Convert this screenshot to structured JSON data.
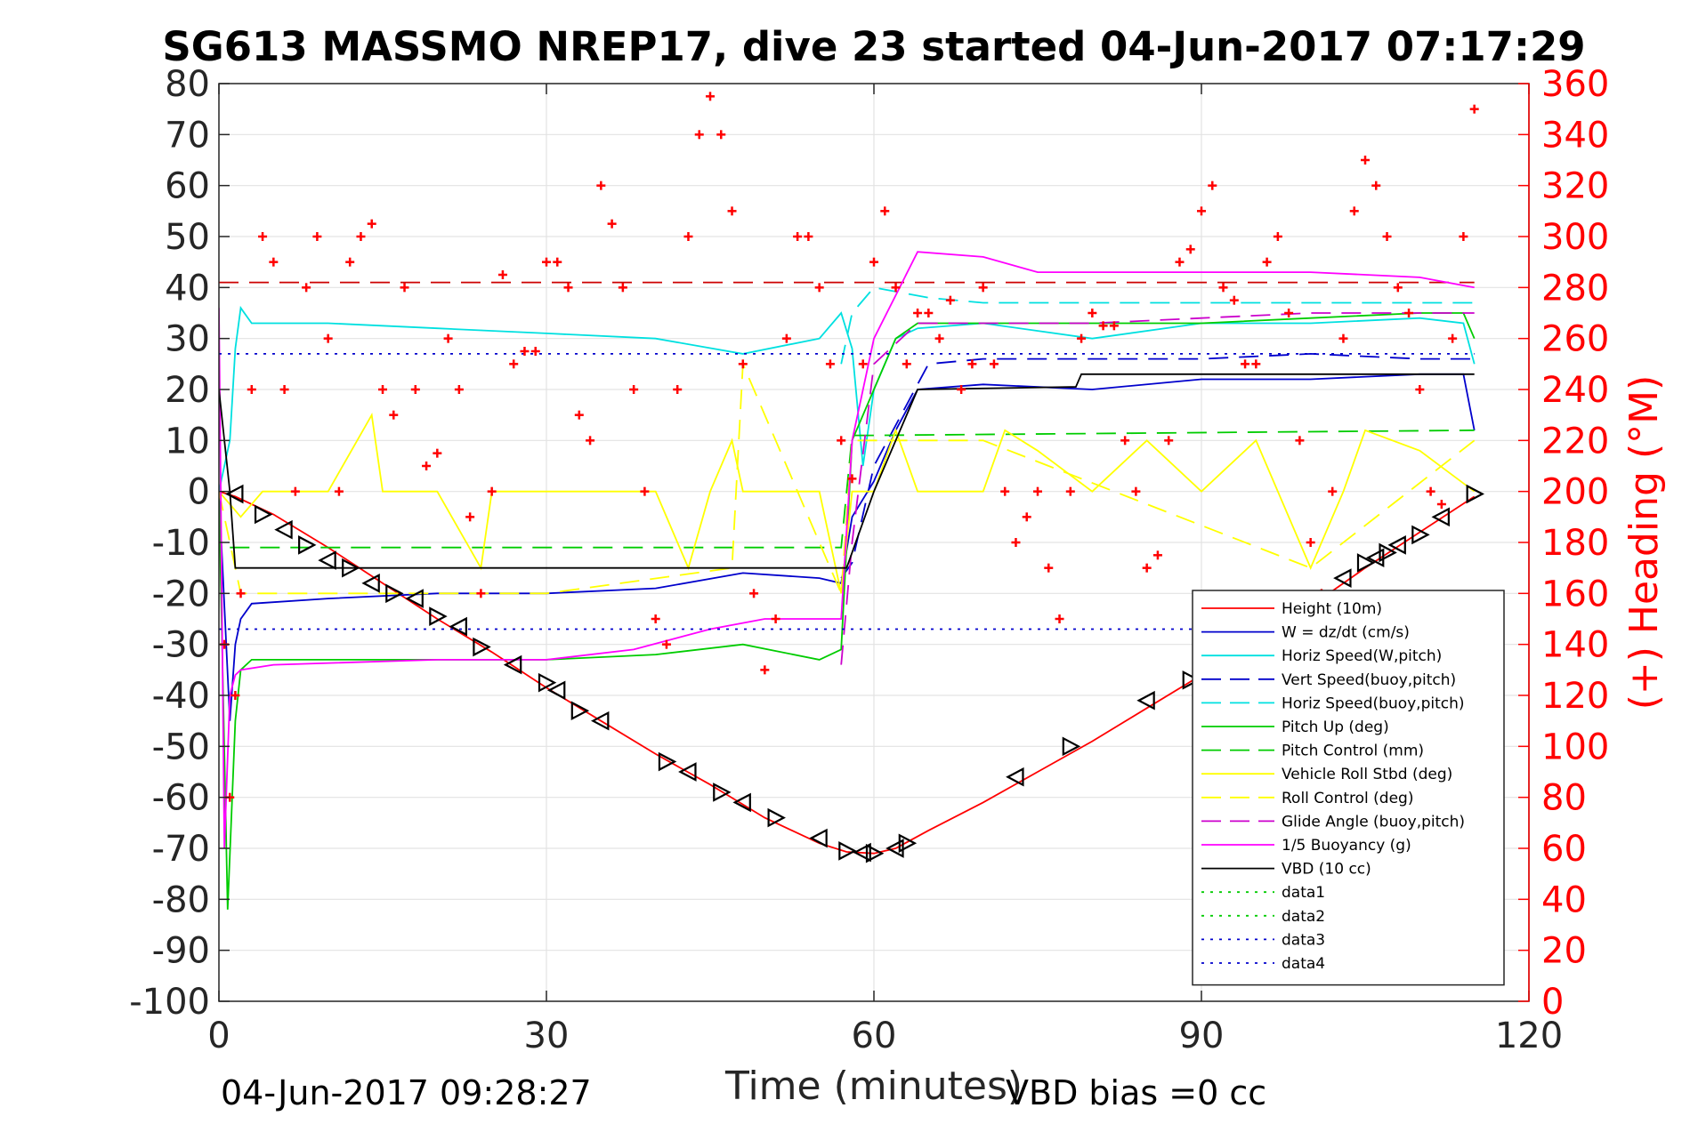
{
  "chart_data": {
    "type": "line",
    "title": "SG613 MASSMO NREP17, dive 23 started 04-Jun-2017 07:17:29",
    "xlabel": "Time (minutes)",
    "ylabel": "",
    "ylabel_right": "(+) Heading (°M)",
    "xlim": [
      0,
      120
    ],
    "ylim": [
      -100,
      80
    ],
    "ylim_right": [
      0,
      360
    ],
    "x_ticks": [
      0,
      30,
      60,
      90,
      120
    ],
    "y_ticks": [
      80,
      70,
      60,
      50,
      40,
      30,
      20,
      10,
      0,
      -10,
      -20,
      -30,
      -40,
      -50,
      -60,
      -70,
      -80,
      -90,
      -100
    ],
    "y_ticks_right": [
      360,
      340,
      320,
      300,
      280,
      260,
      240,
      220,
      200,
      180,
      160,
      140,
      120,
      100,
      80,
      60,
      40,
      20,
      0
    ],
    "grid": true,
    "legend_position": "bottom-right",
    "footer_left": "04-Jun-2017 09:28:27",
    "footer_right": "VBD bias =0 cc",
    "series": [
      {
        "name": "Height (10m)",
        "color": "#ff0000",
        "style": "solid",
        "x": [
          0,
          1.5,
          5,
          10,
          15,
          20,
          25,
          30,
          35,
          40,
          45,
          50,
          55,
          57.5,
          60,
          62,
          65,
          70,
          75,
          80,
          85,
          90,
          95,
          100,
          105,
          110,
          115
        ],
        "values": [
          0,
          -1,
          -4.5,
          -11,
          -18,
          -25,
          -31.5,
          -38.5,
          -45,
          -51.5,
          -57.5,
          -64,
          -69,
          -70.7,
          -71,
          -70,
          -66.5,
          -61,
          -55,
          -49,
          -42.5,
          -36,
          -29,
          -22.5,
          -15,
          -8,
          -1
        ]
      },
      {
        "name": "W = dz/dt (cm/s)",
        "color": "#0000cc",
        "style": "solid",
        "x": [
          0,
          1,
          1.5,
          2,
          3,
          10,
          20,
          30,
          40,
          48,
          55,
          57,
          58,
          60,
          62,
          64,
          70,
          80,
          90,
          100,
          110,
          114,
          115
        ],
        "values": [
          0,
          -45,
          -30,
          -25,
          -22,
          -21,
          -20,
          -20,
          -19,
          -16,
          -17,
          -18,
          -5,
          2,
          12,
          20,
          21,
          20,
          22,
          22,
          23,
          23,
          12
        ]
      },
      {
        "name": "Horiz Speed(W,pitch)",
        "color": "#00e0e0",
        "style": "solid",
        "x": [
          0,
          1,
          1.5,
          2,
          3,
          10,
          20,
          30,
          40,
          48,
          55,
          57,
          58,
          59,
          60,
          62,
          64,
          70,
          80,
          90,
          100,
          110,
          114,
          115
        ],
        "values": [
          0,
          10,
          28,
          36,
          33,
          33,
          32,
          31,
          30,
          27,
          30,
          35,
          28,
          5,
          20,
          30,
          32,
          33,
          30,
          33,
          33,
          34,
          33,
          25
        ]
      },
      {
        "name": "Vert Speed(buoy,pitch)",
        "color": "#0000cc",
        "style": "dash",
        "x": [
          57,
          58,
          60,
          65,
          70,
          80,
          90,
          100,
          110,
          115
        ],
        "values": [
          -17,
          -14,
          5,
          25,
          26,
          26,
          26,
          27,
          26,
          26
        ]
      },
      {
        "name": "Horiz Speed(buoy,pitch)",
        "color": "#00e0e0",
        "style": "dash",
        "x": [
          57,
          58,
          60,
          65,
          70,
          80,
          90,
          100,
          110,
          115
        ],
        "values": [
          25,
          35,
          40,
          38,
          37,
          37,
          37,
          37,
          37,
          37
        ]
      },
      {
        "name": "Pitch Up (deg)",
        "color": "#00cc00",
        "style": "solid",
        "x": [
          0,
          0.8,
          1.5,
          2,
          3,
          10,
          20,
          30,
          40,
          48,
          55,
          57,
          58,
          60,
          62,
          64,
          70,
          80,
          90,
          100,
          110,
          114,
          115
        ],
        "values": [
          0,
          -82,
          -45,
          -35,
          -33,
          -33,
          -33,
          -33,
          -32,
          -30,
          -33,
          -31,
          10,
          20,
          30,
          33,
          33,
          33,
          33,
          34,
          35,
          35,
          30
        ]
      },
      {
        "name": "Pitch Control (mm)",
        "color": "#00cc00",
        "style": "dash",
        "x": [
          1,
          57,
          58,
          60,
          115
        ],
        "values": [
          -11,
          -11,
          11,
          11,
          12
        ]
      },
      {
        "name": "Vehicle Roll Stbd (deg)",
        "color": "#ffff00",
        "style": "solid",
        "x": [
          0,
          2,
          4,
          5,
          10,
          14,
          15,
          20,
          24,
          25,
          30,
          40,
          43,
          45,
          47,
          48,
          55,
          57,
          58,
          60,
          62,
          64,
          70,
          72,
          75,
          80,
          85,
          90,
          95,
          100,
          103,
          105,
          110,
          115
        ],
        "values": [
          0,
          -5,
          0,
          0,
          0,
          15,
          0,
          0,
          -15,
          0,
          0,
          0,
          -15,
          0,
          10,
          0,
          0,
          -20,
          0,
          0,
          12,
          0,
          0,
          12,
          8,
          0,
          10,
          0,
          10,
          -15,
          0,
          12,
          8,
          0
        ]
      },
      {
        "name": "Roll Control (deg)",
        "color": "#ffff00",
        "style": "dash",
        "x": [
          0,
          2,
          30,
          47,
          48,
          57,
          58,
          70,
          100,
          115
        ],
        "values": [
          0,
          -20,
          -20,
          -15,
          25,
          -20,
          10,
          10,
          -15,
          10
        ]
      },
      {
        "name": "Glide Angle (buoy,pitch)",
        "color": "#cc00cc",
        "style": "dash",
        "x": [
          57,
          58,
          60,
          64,
          70,
          80,
          90,
          100,
          110,
          115
        ],
        "values": [
          -34,
          -10,
          25,
          33,
          33,
          33,
          34,
          35,
          35,
          35
        ]
      },
      {
        "name": "1/5 Buoyancy (g)",
        "color": "#ff00ff",
        "style": "solid",
        "x": [
          0,
          0.5,
          1,
          1.5,
          2,
          5,
          20,
          30,
          38,
          45,
          50,
          57,
          58,
          60,
          64,
          70,
          75,
          80,
          90,
          100,
          110,
          115
        ],
        "values": [
          36,
          -70,
          -40,
          -36,
          -35,
          -34,
          -33,
          -33,
          -31,
          -27,
          -25,
          -25,
          10,
          30,
          47,
          46,
          43,
          43,
          43,
          43,
          42,
          40
        ]
      },
      {
        "name": "VBD (10 cc)",
        "color": "#000000",
        "style": "solid",
        "x": [
          0,
          1,
          1.5,
          57.5,
          60,
          62,
          64,
          78,
          78.5,
          79,
          115
        ],
        "values": [
          20,
          0,
          -15,
          -15,
          0,
          10,
          20,
          20.5,
          20.5,
          23,
          23
        ]
      },
      {
        "name": "data1",
        "color": "#00cc00",
        "style": "dot",
        "x": [],
        "values": []
      },
      {
        "name": "data2",
        "color": "#00cc00",
        "style": "dot",
        "x": [],
        "values": []
      },
      {
        "name": "data3",
        "color": "#0000cc",
        "style": "dot",
        "x": [
          0,
          115
        ],
        "values": [
          27,
          27
        ]
      },
      {
        "name": "data4",
        "color": "#0000cc",
        "style": "dot",
        "x": [
          0,
          115
        ],
        "values": [
          -27,
          -27
        ]
      }
    ],
    "reference_line": {
      "color": "#cc0000",
      "style": "dash",
      "x": [
        0,
        115
      ],
      "values": [
        41,
        41
      ]
    },
    "heading": {
      "color": "#ff0000",
      "marker": "+",
      "axis": "right",
      "x": [
        0.5,
        1,
        1.5,
        2,
        3,
        4,
        5,
        6,
        7,
        8,
        9,
        10,
        11,
        12,
        13,
        14,
        15,
        16,
        17,
        18,
        19,
        20,
        21,
        22,
        23,
        24,
        25,
        26,
        27,
        28,
        29,
        30,
        31,
        32,
        33,
        34,
        35,
        36,
        37,
        38,
        39,
        40,
        41,
        42,
        43,
        44,
        45,
        46,
        47,
        48,
        49,
        50,
        51,
        52,
        53,
        54,
        55,
        56,
        57,
        58,
        59,
        60,
        61,
        62,
        63,
        64,
        65,
        66,
        67,
        68,
        69,
        70,
        71,
        72,
        73,
        74,
        75,
        76,
        77,
        78,
        79,
        80,
        81,
        82,
        83,
        84,
        85,
        86,
        87,
        88,
        89,
        90,
        91,
        92,
        93,
        94,
        95,
        96,
        97,
        98,
        99,
        100,
        101,
        102,
        103,
        104,
        105,
        106,
        107,
        108,
        109,
        110,
        111,
        112,
        113,
        114,
        115
      ],
      "values": [
        140,
        80,
        120,
        160,
        240,
        300,
        290,
        240,
        200,
        280,
        300,
        260,
        200,
        290,
        300,
        305,
        240,
        230,
        280,
        240,
        210,
        215,
        260,
        240,
        190,
        160,
        200,
        285,
        250,
        255,
        255,
        290,
        290,
        280,
        230,
        220,
        320,
        305,
        280,
        240,
        200,
        150,
        140,
        240,
        300,
        340,
        355,
        340,
        310,
        250,
        160,
        130,
        150,
        260,
        300,
        300,
        280,
        250,
        220,
        205,
        250,
        290,
        310,
        280,
        250,
        270,
        270,
        260,
        275,
        240,
        250,
        280,
        250,
        200,
        180,
        190,
        200,
        170,
        150,
        200,
        260,
        270,
        265,
        265,
        220,
        200,
        170,
        175,
        220,
        290,
        295,
        310,
        320,
        280,
        275,
        250,
        250,
        290,
        300,
        270,
        220,
        180,
        160,
        200,
        260,
        310,
        330,
        320,
        300,
        280,
        270,
        240,
        200,
        195,
        260,
        300,
        350
      ]
    },
    "height_markers": {
      "color": "#000000",
      "x": [
        1.5,
        4,
        6,
        8,
        10,
        12,
        14,
        16,
        18,
        20,
        22,
        24,
        27,
        30,
        31,
        33,
        35,
        41,
        43,
        46,
        48,
        51,
        55,
        57.5,
        59,
        60,
        62,
        63,
        73,
        78,
        85,
        89,
        103,
        105,
        106,
        107,
        108,
        110,
        112,
        115
      ],
      "values": [
        -0.5,
        -4.5,
        -7.5,
        -10.5,
        -13.5,
        -15,
        -18,
        -20,
        -21,
        -24.5,
        -26.5,
        -30.5,
        -34,
        -37.5,
        -39,
        -43,
        -45,
        -53,
        -55,
        -59,
        -61,
        -64,
        -68,
        -70.5,
        -70.8,
        -71,
        -70,
        -69,
        -56,
        -50,
        -41,
        -37,
        -17,
        -14,
        -13,
        -12,
        -10.5,
        -8.5,
        -5,
        -0.5
      ]
    }
  }
}
